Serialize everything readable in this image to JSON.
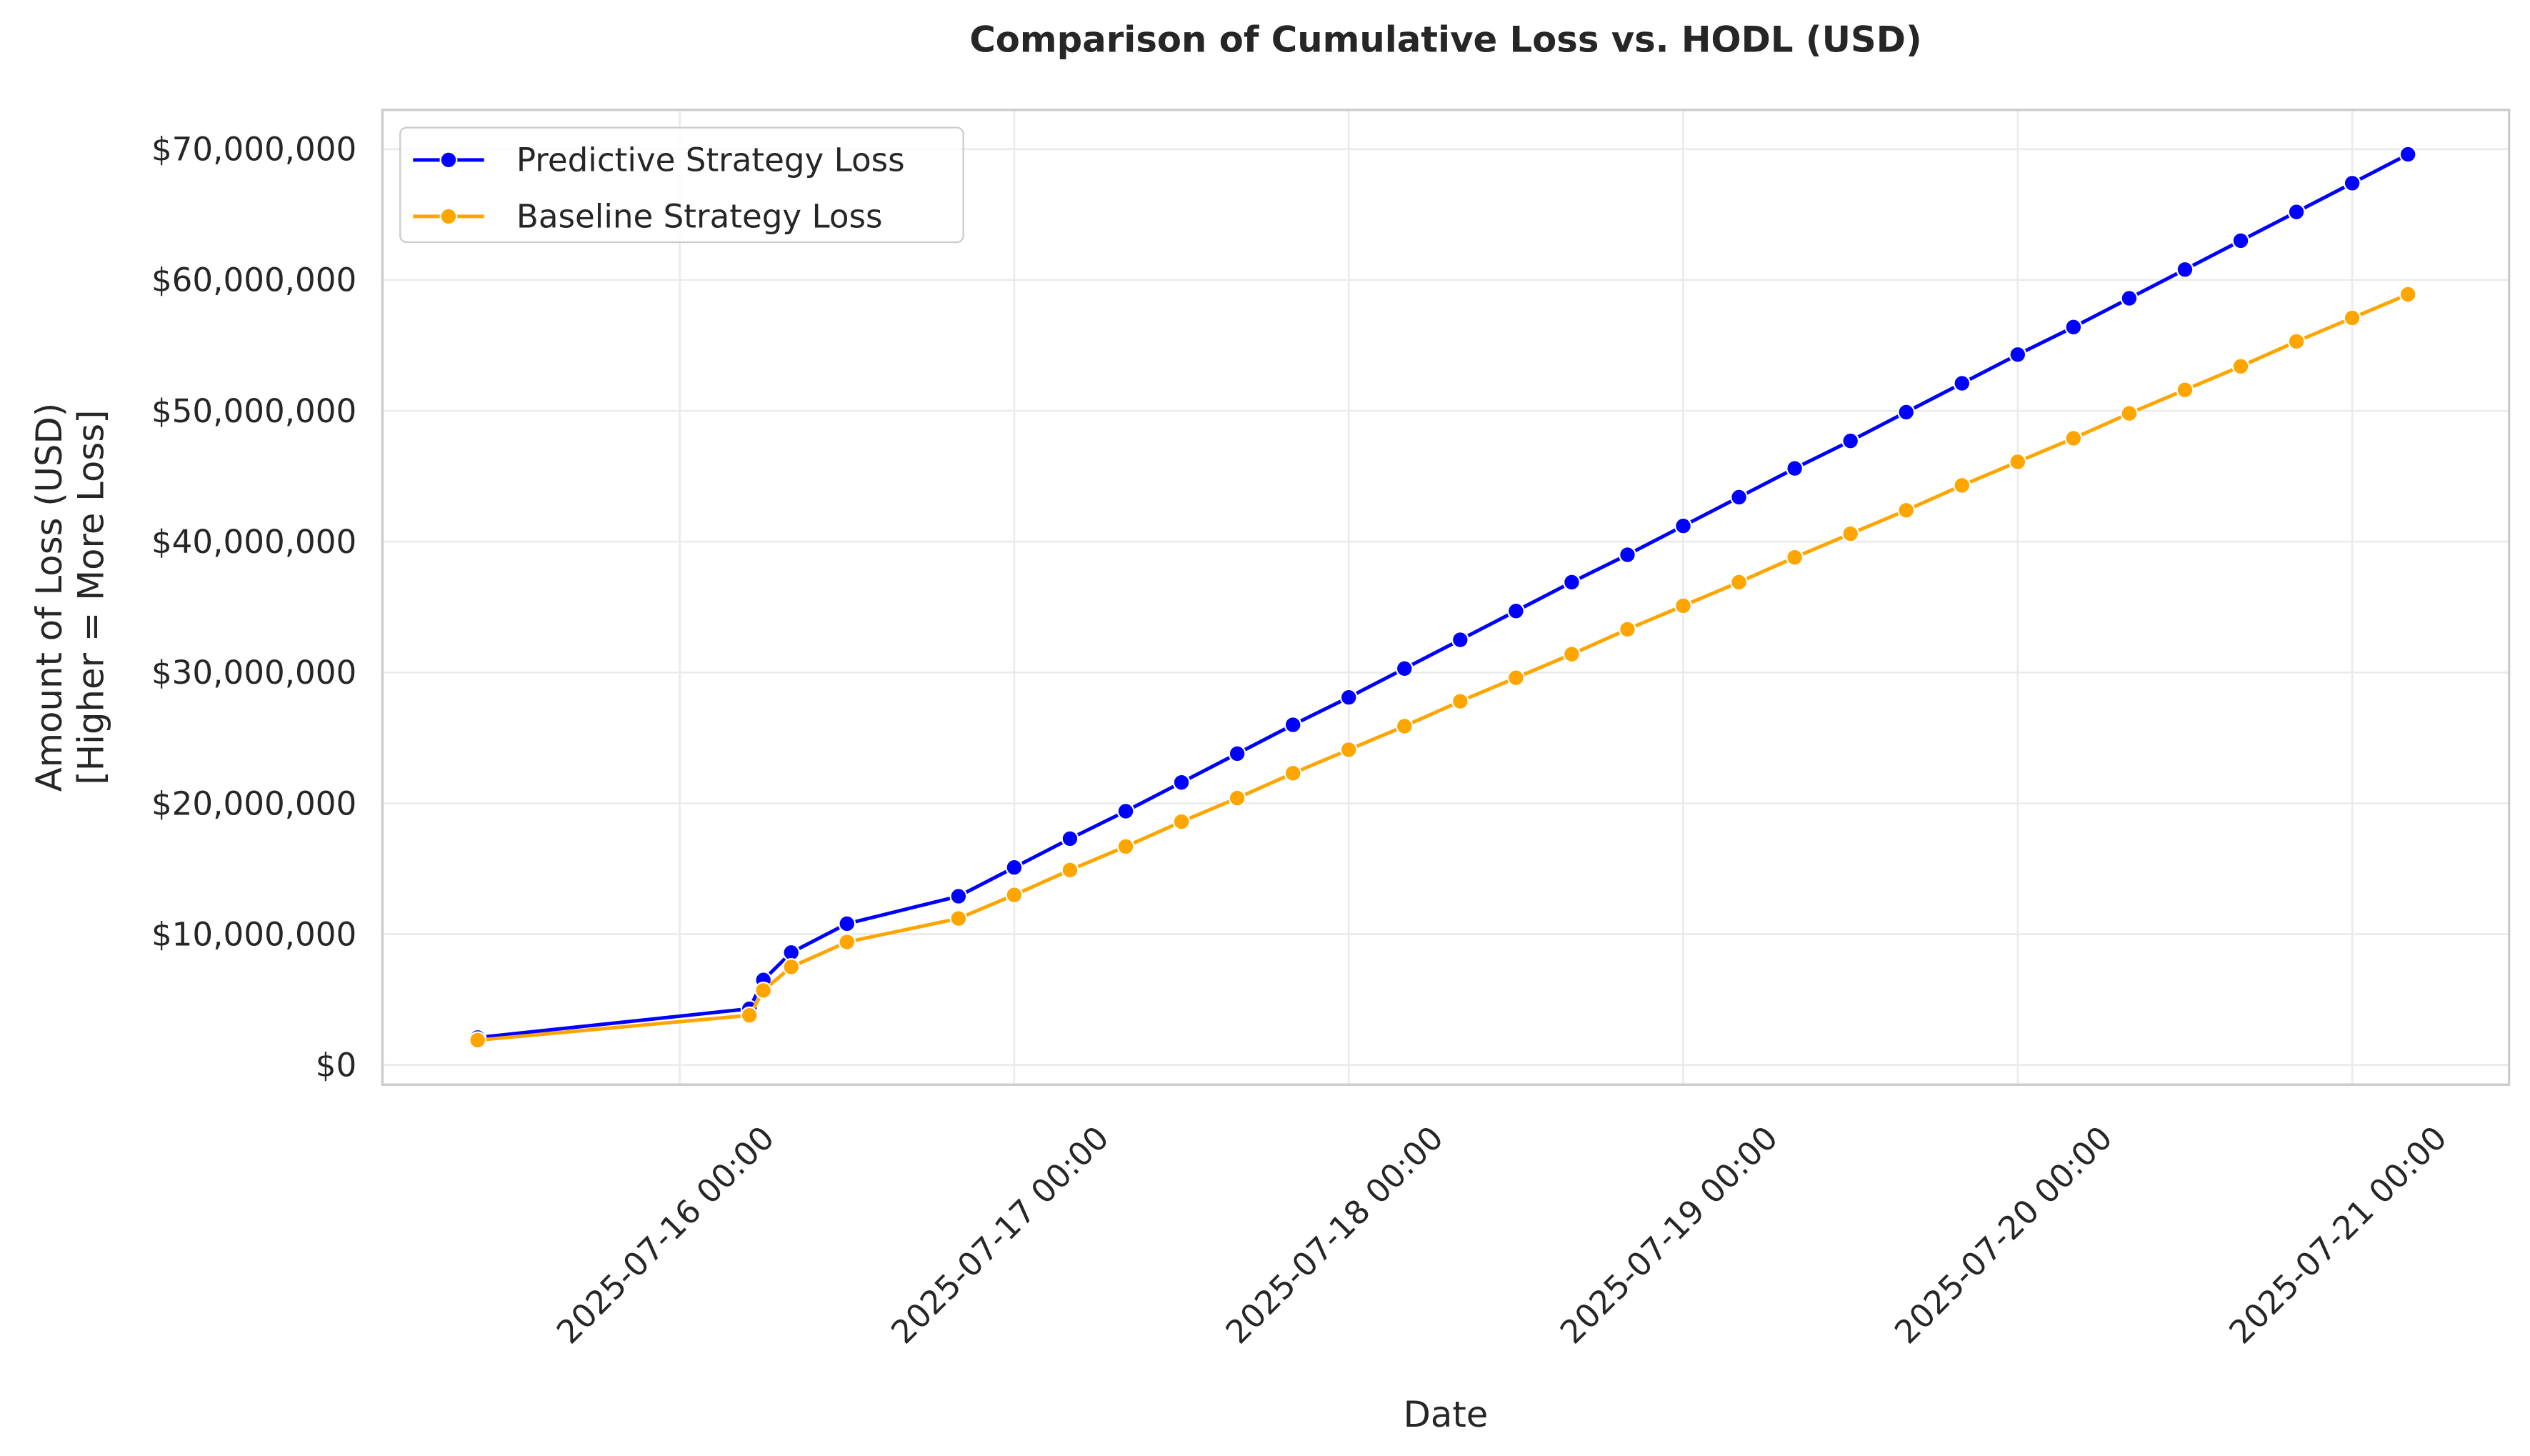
{
  "chart_data": {
    "type": "line",
    "title": "Comparison of Cumulative Loss vs. HODL (USD)",
    "xlabel": "Date",
    "ylabel": [
      "Amount of Loss (USD)",
      "[Higher = More Loss]"
    ],
    "x": [
      "2025-07-15 09:30",
      "2025-07-16 05:00",
      "2025-07-16 06:00",
      "2025-07-16 08:00",
      "2025-07-16 12:00",
      "2025-07-16 20:00",
      "2025-07-17 00:00",
      "2025-07-17 04:00",
      "2025-07-17 08:00",
      "2025-07-17 12:00",
      "2025-07-17 16:00",
      "2025-07-17 20:00",
      "2025-07-18 00:00",
      "2025-07-18 04:00",
      "2025-07-18 08:00",
      "2025-07-18 12:00",
      "2025-07-18 16:00",
      "2025-07-18 20:00",
      "2025-07-19 00:00",
      "2025-07-19 04:00",
      "2025-07-19 08:00",
      "2025-07-19 12:00",
      "2025-07-19 16:00",
      "2025-07-19 20:00",
      "2025-07-20 00:00",
      "2025-07-20 04:00",
      "2025-07-20 08:00",
      "2025-07-20 12:00",
      "2025-07-20 16:00",
      "2025-07-20 20:00",
      "2025-07-21 00:00",
      "2025-07-21 04:00"
    ],
    "series": [
      {
        "name": "Predictive Strategy Loss",
        "color": "#0000ff",
        "values": [
          2100000,
          4300000,
          6500000,
          8600000,
          10800000,
          12900000,
          15100000,
          17300000,
          19400000,
          21600000,
          23800000,
          26000000,
          28100000,
          30300000,
          32500000,
          34700000,
          36900000,
          39000000,
          41200000,
          43400000,
          45600000,
          47700000,
          49900000,
          52100000,
          54300000,
          56400000,
          58600000,
          60800000,
          63000000,
          65200000,
          67400000,
          69600000
        ]
      },
      {
        "name": "Baseline Strategy Loss",
        "color": "#ffa500",
        "values": [
          1900000,
          3800000,
          5700000,
          7500000,
          9400000,
          11200000,
          13000000,
          14900000,
          16700000,
          18600000,
          20400000,
          22300000,
          24100000,
          25900000,
          27800000,
          29600000,
          31400000,
          33300000,
          35100000,
          36900000,
          38800000,
          40600000,
          42400000,
          44300000,
          46100000,
          47900000,
          49800000,
          51600000,
          53400000,
          55300000,
          57100000,
          58900000
        ]
      }
    ],
    "xlim": [
      "2025-07-15 02:40",
      "2025-07-21 11:15"
    ],
    "xticks": [
      "2025-07-16 00:00",
      "2025-07-17 00:00",
      "2025-07-18 00:00",
      "2025-07-19 00:00",
      "2025-07-20 00:00",
      "2025-07-21 00:00"
    ],
    "ylim": [
      -1500000,
      73000000
    ],
    "yticks": [
      {
        "value": 0,
        "label": "$0"
      },
      {
        "value": 10000000,
        "label": "$10,000,000"
      },
      {
        "value": 20000000,
        "label": "$20,000,000"
      },
      {
        "value": 30000000,
        "label": "$30,000,000"
      },
      {
        "value": 40000000,
        "label": "$40,000,000"
      },
      {
        "value": 50000000,
        "label": "$50,000,000"
      },
      {
        "value": 60000000,
        "label": "$60,000,000"
      },
      {
        "value": 70000000,
        "label": "$70,000,000"
      }
    ],
    "grid": true,
    "legend": "upper left"
  }
}
